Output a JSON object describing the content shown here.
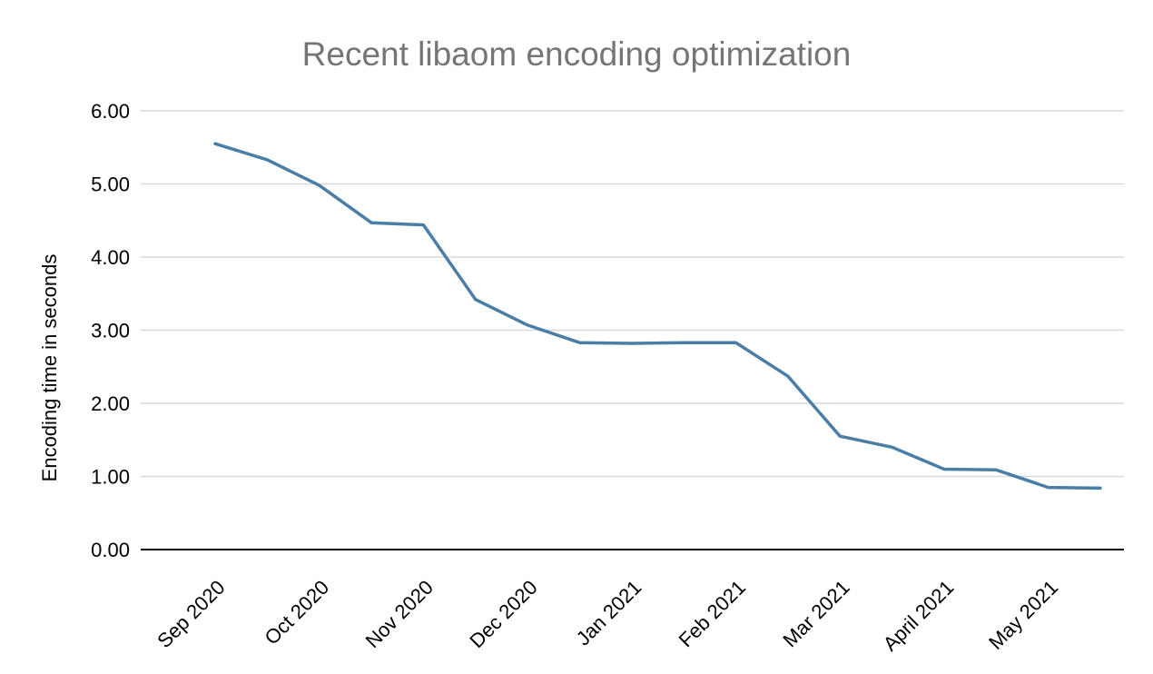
{
  "chart": {
    "title": "Recent libaom encoding optimization",
    "ylabel": "Encoding time in seconds"
  },
  "chart_data": {
    "type": "line",
    "title": "Recent libaom encoding optimization",
    "xlabel": "",
    "ylabel": "Encoding time in seconds",
    "categories": [
      "Sep 2020",
      "Oct 2020",
      "Nov 2020",
      "Dec 2020",
      "Jan 2021",
      "Feb 2021",
      "Mar 2021",
      "April 2021",
      "May 2021"
    ],
    "points_per_category": 2,
    "series": [
      {
        "name": "Encoding time",
        "values": [
          5.55,
          5.33,
          4.98,
          4.47,
          4.44,
          3.42,
          3.07,
          2.83,
          2.82,
          2.83,
          2.83,
          2.37,
          1.55,
          1.4,
          1.1,
          1.09,
          0.85,
          0.84
        ]
      }
    ],
    "ylim": [
      0,
      6
    ],
    "y_tick_step": 1,
    "y_tick_format_decimals": 2,
    "grid": true,
    "legend_position": "none",
    "line_color": "#4a7ea6",
    "grid_color": "#d9d9d9",
    "axis_color": "#000000",
    "title_color": "#757575"
  }
}
